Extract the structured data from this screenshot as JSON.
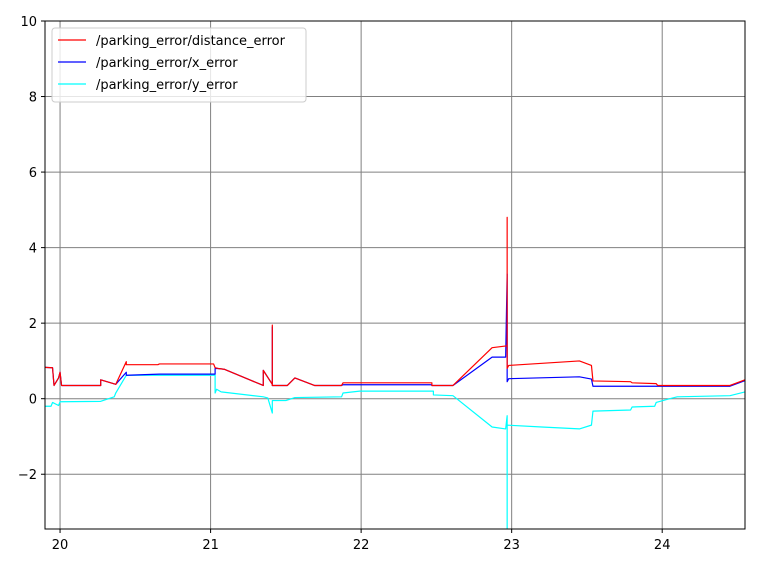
{
  "chart_data": {
    "type": "line",
    "xlim": [
      19.9,
      24.55
    ],
    "ylim": [
      -3.45,
      10
    ],
    "x_ticks": [
      20,
      21,
      22,
      23,
      24
    ],
    "x_tick_labels": [
      "20",
      "21",
      "22",
      "23",
      "24"
    ],
    "y_ticks": [
      -2,
      0,
      2,
      4,
      6,
      8,
      10
    ],
    "y_tick_labels": [
      "−2",
      "0",
      "2",
      "4",
      "6",
      "8",
      "10"
    ],
    "grid": true,
    "legend_position": "top-left",
    "colors": {
      "grid": "#808080",
      "axes": "#000000"
    },
    "series": [
      {
        "name": "/parking_error/distance_error",
        "color": "#ff0000",
        "points": [
          [
            19.9,
            0.83
          ],
          [
            19.95,
            0.82
          ],
          [
            19.96,
            0.35
          ],
          [
            19.99,
            0.55
          ],
          [
            20.0,
            0.7
          ],
          [
            20.01,
            0.35
          ],
          [
            20.27,
            0.35
          ],
          [
            20.27,
            0.5
          ],
          [
            20.37,
            0.38
          ],
          [
            20.44,
            0.98
          ],
          [
            20.44,
            0.9
          ],
          [
            20.65,
            0.9
          ],
          [
            20.66,
            0.92
          ],
          [
            21.02,
            0.92
          ],
          [
            21.03,
            0.82
          ],
          [
            21.05,
            0.8
          ],
          [
            21.09,
            0.78
          ],
          [
            21.35,
            0.35
          ],
          [
            21.35,
            0.75
          ],
          [
            21.41,
            0.38
          ],
          [
            21.41,
            1.95
          ],
          [
            21.41,
            0.35
          ],
          [
            21.51,
            0.35
          ],
          [
            21.56,
            0.55
          ],
          [
            21.69,
            0.35
          ],
          [
            21.87,
            0.35
          ],
          [
            21.88,
            0.42
          ],
          [
            22.47,
            0.42
          ],
          [
            22.47,
            0.35
          ],
          [
            22.61,
            0.35
          ],
          [
            22.87,
            1.35
          ],
          [
            22.97,
            1.4
          ],
          [
            22.97,
            4.8
          ],
          [
            22.97,
            0.8
          ],
          [
            22.98,
            0.88
          ],
          [
            23.45,
            1.0
          ],
          [
            23.53,
            0.88
          ],
          [
            23.54,
            0.47
          ],
          [
            23.79,
            0.45
          ],
          [
            23.8,
            0.42
          ],
          [
            23.96,
            0.4
          ],
          [
            23.97,
            0.35
          ],
          [
            24.45,
            0.35
          ],
          [
            24.55,
            0.5
          ]
        ]
      },
      {
        "name": "/parking_error/x_error",
        "color": "#0000ff",
        "points": [
          [
            19.9,
            0.83
          ],
          [
            19.95,
            0.82
          ],
          [
            19.96,
            0.35
          ],
          [
            19.99,
            0.55
          ],
          [
            20.0,
            0.7
          ],
          [
            20.01,
            0.35
          ],
          [
            20.27,
            0.35
          ],
          [
            20.27,
            0.5
          ],
          [
            20.37,
            0.38
          ],
          [
            20.44,
            0.7
          ],
          [
            20.44,
            0.62
          ],
          [
            20.66,
            0.65
          ],
          [
            21.03,
            0.65
          ],
          [
            21.03,
            0.8
          ],
          [
            21.05,
            0.8
          ],
          [
            21.09,
            0.78
          ],
          [
            21.35,
            0.35
          ],
          [
            21.35,
            0.75
          ],
          [
            21.41,
            0.38
          ],
          [
            21.41,
            1.9
          ],
          [
            21.41,
            0.35
          ],
          [
            21.51,
            0.35
          ],
          [
            21.56,
            0.55
          ],
          [
            21.69,
            0.35
          ],
          [
            21.87,
            0.35
          ],
          [
            21.88,
            0.37
          ],
          [
            22.47,
            0.37
          ],
          [
            22.47,
            0.35
          ],
          [
            22.61,
            0.35
          ],
          [
            22.87,
            1.1
          ],
          [
            22.96,
            1.1
          ],
          [
            22.97,
            3.3
          ],
          [
            22.97,
            0.45
          ],
          [
            22.98,
            0.53
          ],
          [
            23.45,
            0.58
          ],
          [
            23.53,
            0.52
          ],
          [
            23.54,
            0.33
          ],
          [
            24.45,
            0.33
          ],
          [
            24.55,
            0.48
          ]
        ]
      },
      {
        "name": "/parking_error/y_error",
        "color": "#00ffff",
        "points": [
          [
            19.9,
            -0.2
          ],
          [
            19.94,
            -0.2
          ],
          [
            19.95,
            -0.1
          ],
          [
            19.99,
            -0.18
          ],
          [
            20.0,
            -0.08
          ],
          [
            20.27,
            -0.07
          ],
          [
            20.36,
            0.05
          ],
          [
            20.37,
            0.15
          ],
          [
            20.44,
            0.62
          ],
          [
            21.03,
            0.62
          ],
          [
            21.03,
            0.15
          ],
          [
            21.04,
            0.25
          ],
          [
            21.07,
            0.18
          ],
          [
            21.35,
            0.05
          ],
          [
            21.38,
            0.02
          ],
          [
            21.41,
            -0.38
          ],
          [
            21.41,
            -0.05
          ],
          [
            21.5,
            -0.05
          ],
          [
            21.56,
            0.03
          ],
          [
            21.87,
            0.05
          ],
          [
            21.88,
            0.15
          ],
          [
            21.99,
            0.2
          ],
          [
            22.48,
            0.2
          ],
          [
            22.48,
            0.1
          ],
          [
            22.61,
            0.08
          ],
          [
            22.87,
            -0.75
          ],
          [
            22.96,
            -0.8
          ],
          [
            22.97,
            -0.45
          ],
          [
            22.97,
            -3.45
          ],
          [
            22.97,
            -0.7
          ],
          [
            23.2,
            -0.75
          ],
          [
            23.45,
            -0.8
          ],
          [
            23.53,
            -0.7
          ],
          [
            23.54,
            -0.33
          ],
          [
            23.79,
            -0.3
          ],
          [
            23.8,
            -0.22
          ],
          [
            23.95,
            -0.2
          ],
          [
            23.96,
            -0.1
          ],
          [
            24.05,
            0.0
          ],
          [
            24.1,
            0.05
          ],
          [
            24.45,
            0.08
          ],
          [
            24.55,
            0.18
          ]
        ]
      }
    ]
  }
}
